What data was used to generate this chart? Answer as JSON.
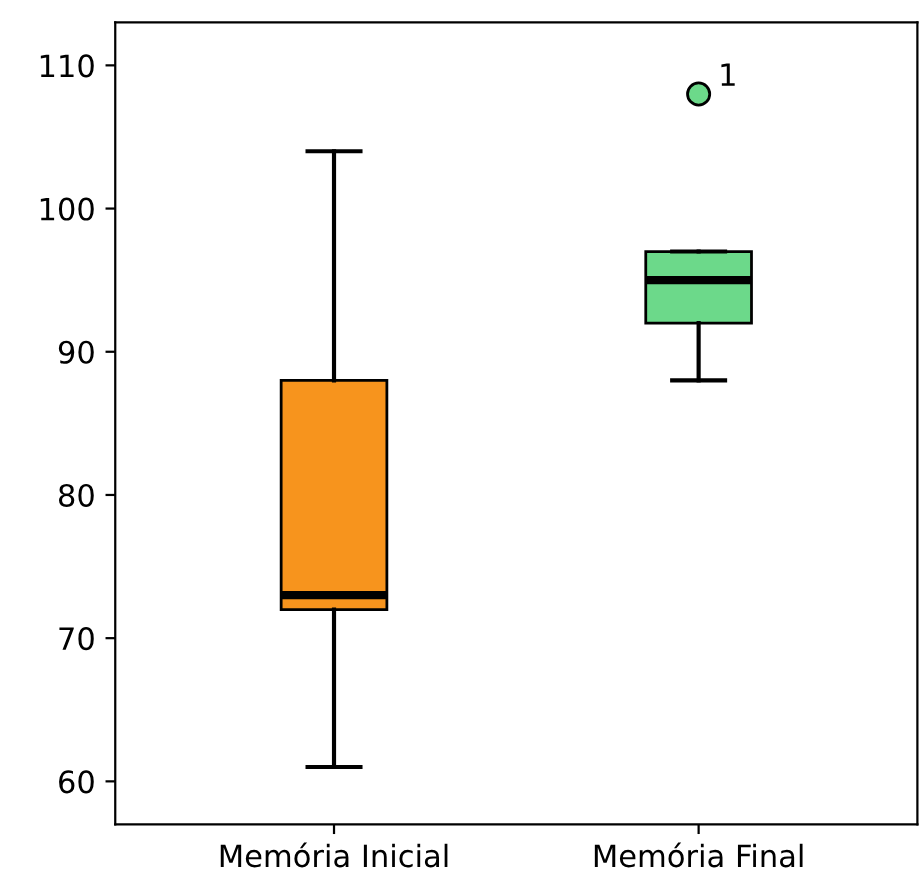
{
  "chart_data": {
    "type": "box",
    "categories": [
      "Memória Inicial",
      "Memória Final"
    ],
    "boxes": [
      {
        "low": 61,
        "q1": 72,
        "median": 73,
        "q3": 88,
        "high": 104
      },
      {
        "low": 88,
        "q1": 92,
        "median": 95,
        "q3": 97,
        "high": 97,
        "outliers": [
          108
        ]
      }
    ],
    "colors": [
      "#f7941d",
      "#6cd98a"
    ],
    "ylim": [
      57,
      113
    ],
    "yticks": [
      60,
      70,
      80,
      90,
      100,
      110
    ],
    "grid": false,
    "annotations": [
      "1"
    ]
  }
}
